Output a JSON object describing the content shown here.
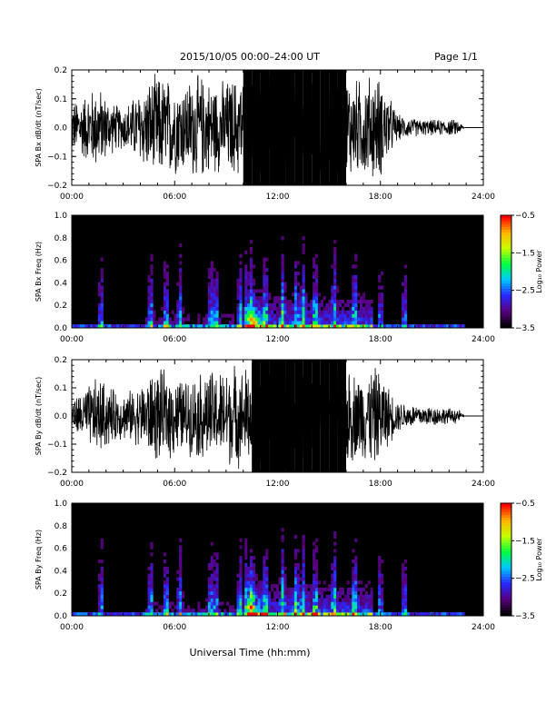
{
  "header": {
    "title": "2015/10/05   00:00–24:00 UT",
    "page": "Page 1/1"
  },
  "xlabel": "Universal Time (hh:mm)",
  "colors": {
    "trace": "#000000",
    "spectrogram_background": "#000000",
    "colormap": [
      "#000000",
      "#5a0080",
      "#2828ff",
      "#00c8ff",
      "#00ff40",
      "#c8ff00",
      "#ffb400",
      "#ff0000"
    ]
  },
  "chart_data": [
    {
      "type": "line",
      "ylabel": "SPA Bx dB/dt (nT/sec)",
      "ylim": [
        -0.2,
        0.2
      ],
      "yticks": [
        -0.2,
        -0.1,
        0.0,
        0.1,
        0.2
      ],
      "ytick_labels": [
        "−0.2",
        "−0.1",
        "0.0",
        "0.1",
        "0.2"
      ],
      "xlim": [
        0,
        24
      ],
      "xticks": [
        0,
        6,
        12,
        18,
        24
      ],
      "xtick_labels": [
        "00:00",
        "06:00",
        "12:00",
        "18:00",
        "24:00"
      ],
      "envelope": {
        "hours": [
          0,
          0.5,
          1,
          1.5,
          2,
          2.5,
          3,
          3.5,
          4,
          4.5,
          5,
          5.5,
          6,
          6.5,
          7,
          7.5,
          8,
          8.5,
          9,
          9.5,
          10,
          10.5,
          11,
          11.5,
          12,
          12.5,
          13,
          13.5,
          14,
          14.5,
          15,
          15.5,
          16,
          16.5,
          17,
          17.5,
          18,
          18.5,
          19,
          19.5,
          20,
          20.5,
          21,
          21.5,
          22,
          22.5,
          22.9
        ],
        "amplitude": [
          0.1,
          0.11,
          0.14,
          0.16,
          0.12,
          0.09,
          0.08,
          0.11,
          0.14,
          0.18,
          0.2,
          0.19,
          0.18,
          0.17,
          0.19,
          0.2,
          0.18,
          0.17,
          0.18,
          0.19,
          0.2,
          0.22,
          0.22,
          0.22,
          0.22,
          0.22,
          0.22,
          0.22,
          0.22,
          0.22,
          0.22,
          0.22,
          0.2,
          0.18,
          0.19,
          0.2,
          0.19,
          0.12,
          0.05,
          0.04,
          0.035,
          0.03,
          0.03,
          0.03,
          0.03,
          0.03,
          0.0
        ]
      },
      "flat_value_after": 0.0
    },
    {
      "type": "heatmap",
      "ylabel": "SPA Bx Freq (Hz)",
      "ylim": [
        0,
        1.0
      ],
      "yticks": [
        0.0,
        0.2,
        0.4,
        0.6,
        0.8,
        1.0
      ],
      "ytick_labels": [
        "0.0",
        "0.2",
        "0.4",
        "0.6",
        "0.8",
        "1.0"
      ],
      "xlim": [
        0,
        24
      ],
      "xticks": [
        0,
        6,
        12,
        18,
        24
      ],
      "xtick_labels": [
        "00:00",
        "06:00",
        "12:00",
        "18:00",
        "24:00"
      ],
      "data_end_hour": 22.9,
      "bursts_hours": [
        1.7,
        4.6,
        5.5,
        6.3,
        8.1,
        8.4,
        9.8,
        10.2,
        10.5,
        11.3,
        12.3,
        13.1,
        13.5,
        14.2,
        15.3,
        16.5,
        18.0,
        19.4
      ],
      "colorbar": {
        "label": "Log₁₀ Power",
        "range": [
          -3.5,
          -0.5
        ],
        "ticks": [
          -0.5,
          -1.5,
          -2.5,
          -3.5
        ],
        "tick_labels": [
          "−0.5",
          "−1.5",
          "−2.5",
          "−3.5"
        ]
      }
    },
    {
      "type": "line",
      "ylabel": "SPA By dB/dt (nT/sec)",
      "ylim": [
        -0.2,
        0.2
      ],
      "yticks": [
        -0.2,
        -0.1,
        0.0,
        0.1,
        0.2
      ],
      "ytick_labels": [
        "−0.2",
        "−0.1",
        "0.0",
        "0.1",
        "0.2"
      ],
      "xlim": [
        0,
        24
      ],
      "xticks": [
        0,
        6,
        12,
        18,
        24
      ],
      "xtick_labels": [
        "00:00",
        "06:00",
        "12:00",
        "18:00",
        "24:00"
      ],
      "envelope": {
        "hours": [
          0,
          0.5,
          1,
          1.5,
          2,
          2.5,
          3,
          3.5,
          4,
          4.5,
          5,
          5.5,
          6,
          6.5,
          7,
          7.5,
          8,
          8.5,
          9,
          9.5,
          10,
          10.5,
          11,
          11.5,
          12,
          12.5,
          13,
          13.5,
          14,
          14.5,
          15,
          15.5,
          16,
          16.5,
          17,
          17.5,
          18,
          18.5,
          19,
          19.5,
          20,
          20.5,
          21,
          21.5,
          22,
          22.5,
          22.9
        ],
        "amplitude": [
          0.06,
          0.09,
          0.12,
          0.15,
          0.13,
          0.1,
          0.09,
          0.1,
          0.12,
          0.16,
          0.18,
          0.17,
          0.16,
          0.14,
          0.15,
          0.17,
          0.18,
          0.17,
          0.19,
          0.2,
          0.18,
          0.22,
          0.22,
          0.22,
          0.22,
          0.22,
          0.22,
          0.22,
          0.22,
          0.22,
          0.22,
          0.22,
          0.2,
          0.17,
          0.17,
          0.19,
          0.18,
          0.11,
          0.06,
          0.05,
          0.045,
          0.04,
          0.04,
          0.035,
          0.03,
          0.03,
          0.0
        ]
      },
      "flat_value_after": 0.0
    },
    {
      "type": "heatmap",
      "ylabel": "SPA By Freq (Hz)",
      "ylim": [
        0,
        1.0
      ],
      "yticks": [
        0.0,
        0.2,
        0.4,
        0.6,
        0.8,
        1.0
      ],
      "ytick_labels": [
        "0.0",
        "0.2",
        "0.4",
        "0.6",
        "0.8",
        "1.0"
      ],
      "xlim": [
        0,
        24
      ],
      "xticks": [
        0,
        6,
        12,
        18,
        24
      ],
      "xtick_labels": [
        "00:00",
        "06:00",
        "12:00",
        "18:00",
        "24:00"
      ],
      "data_end_hour": 22.9,
      "bursts_hours": [
        1.7,
        4.6,
        5.5,
        6.3,
        8.1,
        8.4,
        9.8,
        10.2,
        10.5,
        11.3,
        12.3,
        13.1,
        13.5,
        14.2,
        15.3,
        16.5,
        18.0,
        19.4
      ],
      "colorbar": {
        "label": "Log₁₀ Power",
        "range": [
          -3.5,
          -0.5
        ],
        "ticks": [
          -0.5,
          -1.5,
          -2.5,
          -3.5
        ],
        "tick_labels": [
          "−0.5",
          "−1.5",
          "−2.5",
          "−3.5"
        ]
      }
    }
  ]
}
